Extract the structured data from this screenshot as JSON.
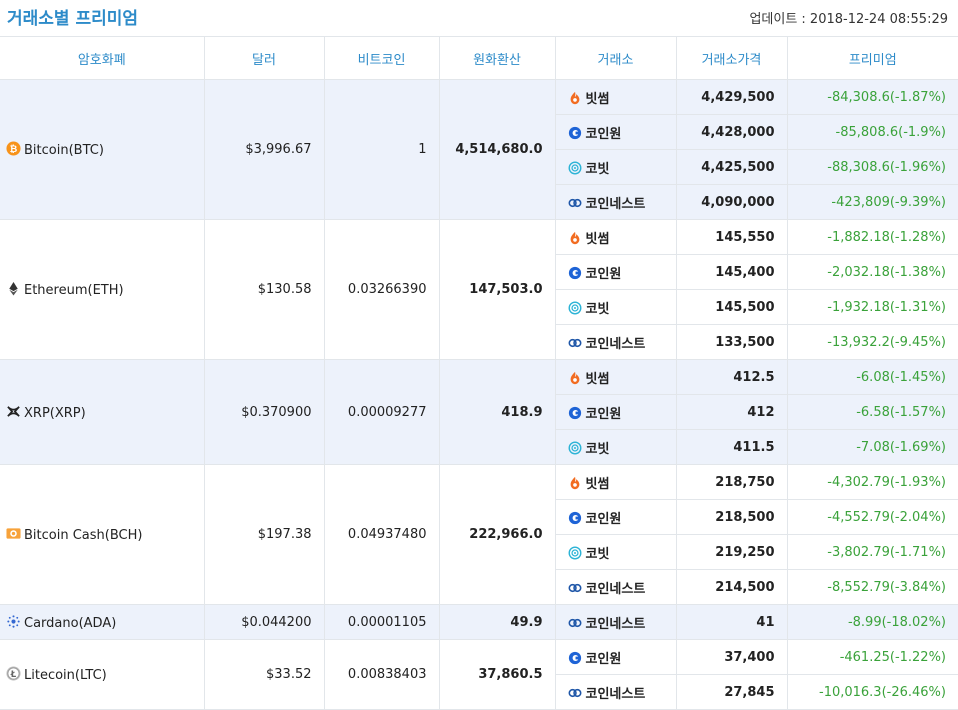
{
  "header": {
    "title": "거래소별 프리미엄",
    "update": "업데이트 : 2018-12-24 08:55:29"
  },
  "columns": [
    "암호화폐",
    "달러",
    "비트코인",
    "원화환산",
    "거래소",
    "거래소가격",
    "프리미엄"
  ],
  "colors": {
    "accent": "#2d8bc9",
    "premium": "#3aa23a",
    "shade": "#edf2fb"
  },
  "coins": [
    {
      "name": "Bitcoin(BTC)",
      "icon": "bitcoin-icon",
      "usd": "$3,996.67",
      "btc": "1",
      "krw": "4,514,680.0",
      "shade": true,
      "exchanges": [
        {
          "name": "빗썸",
          "icon": "bithumb-icon",
          "price": "4,429,500",
          "premium": "-84,308.6(-1.87%)"
        },
        {
          "name": "코인원",
          "icon": "coinone-icon",
          "price": "4,428,000",
          "premium": "-85,808.6(-1.9%)"
        },
        {
          "name": "코빗",
          "icon": "korbit-icon",
          "price": "4,425,500",
          "premium": "-88,308.6(-1.96%)"
        },
        {
          "name": "코인네스트",
          "icon": "coinnest-icon",
          "price": "4,090,000",
          "premium": "-423,809(-9.39%)"
        }
      ]
    },
    {
      "name": "Ethereum(ETH)",
      "icon": "ethereum-icon",
      "usd": "$130.58",
      "btc": "0.03266390",
      "krw": "147,503.0",
      "shade": false,
      "exchanges": [
        {
          "name": "빗썸",
          "icon": "bithumb-icon",
          "price": "145,550",
          "premium": "-1,882.18(-1.28%)"
        },
        {
          "name": "코인원",
          "icon": "coinone-icon",
          "price": "145,400",
          "premium": "-2,032.18(-1.38%)"
        },
        {
          "name": "코빗",
          "icon": "korbit-icon",
          "price": "145,500",
          "premium": "-1,932.18(-1.31%)"
        },
        {
          "name": "코인네스트",
          "icon": "coinnest-icon",
          "price": "133,500",
          "premium": "-13,932.2(-9.45%)"
        }
      ]
    },
    {
      "name": "XRP(XRP)",
      "icon": "xrp-icon",
      "usd": "$0.370900",
      "btc": "0.00009277",
      "krw": "418.9",
      "shade": true,
      "exchanges": [
        {
          "name": "빗썸",
          "icon": "bithumb-icon",
          "price": "412.5",
          "premium": "-6.08(-1.45%)"
        },
        {
          "name": "코인원",
          "icon": "coinone-icon",
          "price": "412",
          "premium": "-6.58(-1.57%)"
        },
        {
          "name": "코빗",
          "icon": "korbit-icon",
          "price": "411.5",
          "premium": "-7.08(-1.69%)"
        }
      ]
    },
    {
      "name": "Bitcoin Cash(BCH)",
      "icon": "bitcoin-cash-icon",
      "usd": "$197.38",
      "btc": "0.04937480",
      "krw": "222,966.0",
      "shade": false,
      "exchanges": [
        {
          "name": "빗썸",
          "icon": "bithumb-icon",
          "price": "218,750",
          "premium": "-4,302.79(-1.93%)"
        },
        {
          "name": "코인원",
          "icon": "coinone-icon",
          "price": "218,500",
          "premium": "-4,552.79(-2.04%)"
        },
        {
          "name": "코빗",
          "icon": "korbit-icon",
          "price": "219,250",
          "premium": "-3,802.79(-1.71%)"
        },
        {
          "name": "코인네스트",
          "icon": "coinnest-icon",
          "price": "214,500",
          "premium": "-8,552.79(-3.84%)"
        }
      ]
    },
    {
      "name": "Cardano(ADA)",
      "icon": "cardano-icon",
      "usd": "$0.044200",
      "btc": "0.00001105",
      "krw": "49.9",
      "shade": true,
      "exchanges": [
        {
          "name": "코인네스트",
          "icon": "coinnest-icon",
          "price": "41",
          "premium": "-8.99(-18.02%)"
        }
      ]
    },
    {
      "name": "Litecoin(LTC)",
      "icon": "litecoin-icon",
      "usd": "$33.52",
      "btc": "0.00838403",
      "krw": "37,860.5",
      "shade": false,
      "exchanges": [
        {
          "name": "코인원",
          "icon": "coinone-icon",
          "price": "37,400",
          "premium": "-461.25(-1.22%)"
        },
        {
          "name": "코인네스트",
          "icon": "coinnest-icon",
          "price": "27,845",
          "premium": "-10,016.3(-26.46%)"
        }
      ]
    }
  ]
}
